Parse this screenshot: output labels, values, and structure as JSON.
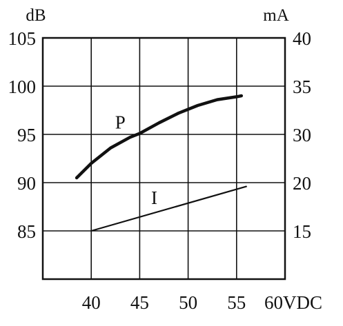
{
  "chart_data": {
    "type": "line",
    "title": "",
    "xlabel": "",
    "x_unit": "VDC",
    "ylabel_left_unit": "dB",
    "ylabel_right_unit": "mA",
    "x_ticks": [
      "40",
      "45",
      "50",
      "55",
      "60VDC"
    ],
    "y_left_ticks": [
      "105",
      "100",
      "95",
      "90",
      "85"
    ],
    "y_right_ticks": [
      "40",
      "35",
      "30",
      "20",
      "15"
    ],
    "xlim": [
      35,
      60
    ],
    "ylim_left": [
      80,
      105
    ],
    "grid": true,
    "series": [
      {
        "name": "P",
        "axis": "left",
        "x": [
          38.5,
          40,
          42,
          44,
          45,
          47,
          49,
          51,
          53,
          55,
          55.5
        ],
        "y": [
          90.5,
          92.0,
          93.6,
          94.7,
          95.1,
          96.2,
          97.2,
          98.0,
          98.6,
          98.9,
          99.0
        ]
      },
      {
        "name": "I",
        "axis": "right",
        "x": [
          40,
          56
        ],
        "y": [
          14.2,
          19.6
        ]
      }
    ]
  }
}
